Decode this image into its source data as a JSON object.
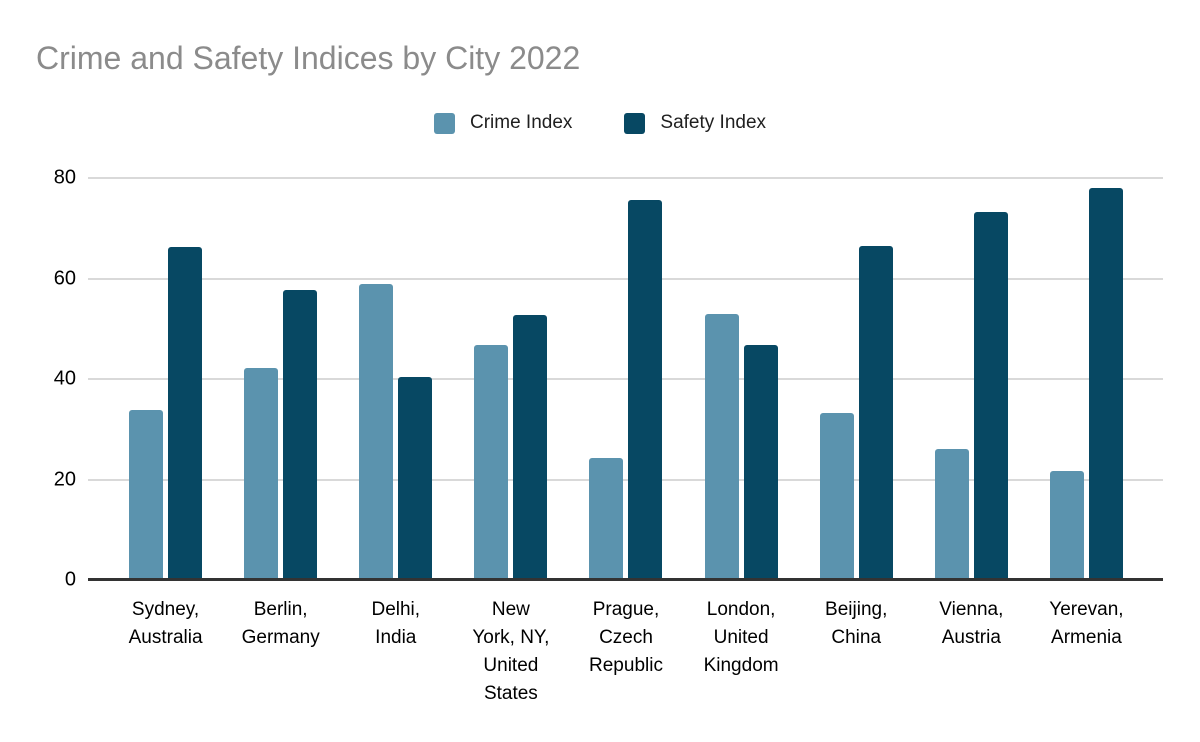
{
  "chart_data": {
    "type": "bar",
    "title": "Crime and Safety Indices by City 2022",
    "categories": [
      "Sydney, Australia",
      "Berlin, Germany",
      "Delhi, India",
      "New York, NY, United States",
      "Prague, Czech Republic",
      "London, United Kingdom",
      "Beijing, China",
      "Vienna, Austria",
      "Yerevan, Armenia"
    ],
    "categories_display": [
      "Sydney,\nAustralia",
      "Berlin,\nGermany",
      "Delhi,\nIndia",
      "New\nYork, NY,\nUnited\nStates",
      "Prague,\nCzech\nRepublic",
      "London,\nUnited\nKingdom",
      "Beijing,\nChina",
      "Vienna,\nAustria",
      "Yerevan,\nArmenia"
    ],
    "series": [
      {
        "name": "Crime Index",
        "color": "#5b93ae",
        "values": [
          33.8,
          42.1,
          59.0,
          46.7,
          24.2,
          53.0,
          33.2,
          26.0,
          21.7
        ]
      },
      {
        "name": "Safety Index",
        "color": "#074863",
        "values": [
          66.2,
          57.8,
          40.5,
          52.7,
          75.6,
          46.7,
          66.5,
          73.3,
          78.0
        ]
      }
    ],
    "yticks": [
      0,
      20,
      40,
      60,
      80
    ],
    "ytick_labels": [
      "0",
      "20",
      "40",
      "60",
      "80"
    ],
    "ylim": [
      0,
      80
    ],
    "xlabel": "",
    "ylabel": "",
    "grid": true,
    "legend_position": "top",
    "colors": {
      "title_text": "#8b8b8b",
      "axis_line": "#333333",
      "gridline": "#d9d9d9",
      "tick_text": "#000000",
      "background": "#ffffff"
    }
  }
}
